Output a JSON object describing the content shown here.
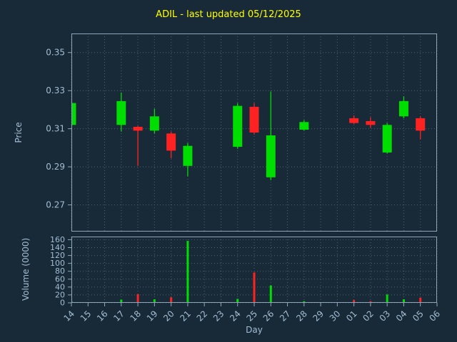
{
  "title": "ADIL - last updated 05/12/2025",
  "xlabel": "Day",
  "price_ylabel": "Price",
  "volume_ylabel": "Volume (0000)",
  "colors": {
    "background": "#182a38",
    "grid": "#4d6272",
    "text": "#a3bdd3",
    "title": "#ffff00",
    "up": "#00dd00",
    "down": "#ff2222",
    "spine": "#8fa6b8"
  },
  "chart_data": {
    "type": "candlestick",
    "title": "ADIL - last updated 05/12/2025",
    "xlabel": "Day",
    "ylabel_price": "Price",
    "ylabel_volume": "Volume (0000)",
    "legend": "none",
    "grid": "dotted",
    "x_categories": [
      "14",
      "15",
      "16",
      "17",
      "18",
      "19",
      "20",
      "21",
      "22",
      "23",
      "24",
      "25",
      "26",
      "27",
      "28",
      "29",
      "30",
      "01",
      "02",
      "03",
      "04",
      "05",
      "06"
    ],
    "price_ticks": [
      0.27,
      0.29,
      0.31,
      0.33,
      0.35
    ],
    "price_ylim": [
      0.256,
      0.36
    ],
    "volume_ticks": [
      0,
      20,
      40,
      60,
      80,
      100,
      120,
      140,
      160
    ],
    "volume_ylim": [
      0,
      168
    ],
    "candles": [
      {
        "day": "14",
        "open": 0.312,
        "high": 0.324,
        "low": 0.311,
        "close": 0.3235,
        "volume": 4
      },
      {
        "day": "17",
        "open": 0.312,
        "high": 0.329,
        "low": 0.3085,
        "close": 0.3245,
        "volume": 8
      },
      {
        "day": "18",
        "open": 0.311,
        "high": 0.3115,
        "low": 0.2905,
        "close": 0.309,
        "volume": 22
      },
      {
        "day": "19",
        "open": 0.309,
        "high": 0.3205,
        "low": 0.3075,
        "close": 0.3165,
        "volume": 9
      },
      {
        "day": "20",
        "open": 0.3075,
        "high": 0.3085,
        "low": 0.2945,
        "close": 0.2985,
        "volume": 14
      },
      {
        "day": "21",
        "open": 0.2905,
        "high": 0.3025,
        "low": 0.285,
        "close": 0.301,
        "volume": 157
      },
      {
        "day": "24",
        "open": 0.3005,
        "high": 0.3235,
        "low": 0.2995,
        "close": 0.322,
        "volume": 10
      },
      {
        "day": "25",
        "open": 0.3215,
        "high": 0.3235,
        "low": 0.307,
        "close": 0.308,
        "volume": 77
      },
      {
        "day": "26",
        "open": 0.2845,
        "high": 0.3295,
        "low": 0.283,
        "close": 0.3065,
        "volume": 44
      },
      {
        "day": "28",
        "open": 0.3095,
        "high": 0.3145,
        "low": 0.309,
        "close": 0.3135,
        "volume": 4
      },
      {
        "day": "01",
        "open": 0.3155,
        "high": 0.317,
        "low": 0.3125,
        "close": 0.313,
        "volume": 7
      },
      {
        "day": "02",
        "open": 0.314,
        "high": 0.316,
        "low": 0.3105,
        "close": 0.312,
        "volume": 4
      },
      {
        "day": "03",
        "open": 0.2975,
        "high": 0.313,
        "low": 0.297,
        "close": 0.312,
        "volume": 21
      },
      {
        "day": "04",
        "open": 0.3165,
        "high": 0.327,
        "low": 0.3155,
        "close": 0.3245,
        "volume": 9
      },
      {
        "day": "05",
        "open": 0.3155,
        "high": 0.3165,
        "low": 0.3045,
        "close": 0.309,
        "volume": 13
      }
    ]
  }
}
